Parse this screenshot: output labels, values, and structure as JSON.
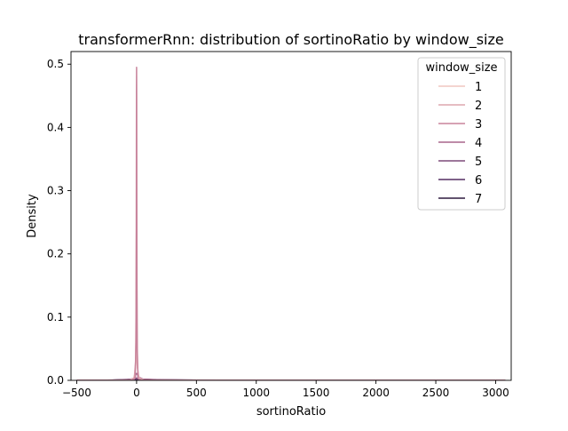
{
  "chart_data": {
    "type": "line",
    "title": "transformerRnn: distribution of sortinoRatio by window_size",
    "xlabel": "sortinoRatio",
    "ylabel": "Density",
    "xlim": [
      -548,
      3130
    ],
    "ylim": [
      0,
      0.52
    ],
    "xticks": [
      -500,
      0,
      500,
      1000,
      1500,
      2000,
      2500,
      3000
    ],
    "xtick_labels": [
      "−500",
      "0",
      "500",
      "1000",
      "1500",
      "2000",
      "2500",
      "3000"
    ],
    "yticks": [
      0.0,
      0.1,
      0.2,
      0.3,
      0.4,
      0.5
    ],
    "ytick_labels": [
      "0.0",
      "0.1",
      "0.2",
      "0.3",
      "0.4",
      "0.5"
    ],
    "grid": false,
    "legend": {
      "title": "window_size",
      "placement": "top-right"
    },
    "series": [
      {
        "name": "1",
        "color": "#f0c5c0",
        "x": [
          -500,
          -60,
          -25,
          -12,
          -6,
          -2,
          0,
          2,
          6,
          12,
          25,
          60,
          200,
          500,
          1000,
          2000,
          3080
        ],
        "y": [
          0,
          0.0003,
          0.003,
          0.012,
          0.028,
          0.044,
          0.048,
          0.042,
          0.024,
          0.01,
          0.003,
          0.0006,
          0.0002,
          0.0001,
          0,
          0,
          0
        ]
      },
      {
        "name": "2",
        "color": "#dda5ae",
        "x": [
          -500,
          -60,
          -20,
          -8,
          -4,
          -1.5,
          0,
          1.5,
          4,
          8,
          20,
          60,
          200,
          500,
          1500,
          3080
        ],
        "y": [
          0,
          0.0002,
          0.002,
          0.03,
          0.12,
          0.23,
          0.25,
          0.2,
          0.09,
          0.02,
          0.002,
          0.0005,
          0.0002,
          0,
          0,
          0
        ]
      },
      {
        "name": "3",
        "color": "#c8839b",
        "x": [
          -500,
          -40,
          -12,
          -5,
          -2.5,
          -1,
          0,
          1,
          2.5,
          5,
          12,
          40,
          200,
          500,
          1500,
          3080
        ],
        "y": [
          0,
          0.0002,
          0.004,
          0.06,
          0.25,
          0.46,
          0.495,
          0.44,
          0.22,
          0.05,
          0.003,
          0.0005,
          0.0002,
          0,
          0,
          0
        ]
      },
      {
        "name": "4",
        "color": "#a8658c",
        "x": [
          -500,
          -150,
          -50,
          -20,
          -8,
          0,
          8,
          20,
          50,
          150,
          400,
          800,
          1500,
          3080
        ],
        "y": [
          0,
          0.0002,
          0.001,
          0.004,
          0.009,
          0.011,
          0.009,
          0.005,
          0.002,
          0.0008,
          0.0003,
          0.0001,
          0,
          0
        ],
        "fill": "#a8658c"
      },
      {
        "name": "5",
        "color": "#7d4a7a",
        "x": [
          -500,
          -200,
          -60,
          -20,
          0,
          20,
          60,
          200,
          500,
          1000,
          1500,
          3080
        ],
        "y": [
          0,
          0.0004,
          0.0015,
          0.003,
          0.0035,
          0.003,
          0.0018,
          0.0008,
          0.0003,
          0.0001,
          0,
          0
        ]
      },
      {
        "name": "6",
        "color": "#552e62",
        "x": [
          -500,
          -300,
          -100,
          -30,
          0,
          30,
          100,
          300,
          700,
          1200,
          2000,
          3080
        ],
        "y": [
          0,
          0.0002,
          0.0008,
          0.0015,
          0.0018,
          0.0016,
          0.0011,
          0.0006,
          0.0003,
          0.0001,
          0,
          0
        ]
      },
      {
        "name": "7",
        "color": "#2d1a3f",
        "x": [
          -500,
          -200,
          -50,
          0,
          50,
          200,
          500,
          1000,
          2000,
          3080
        ],
        "y": [
          0.0001,
          0.0003,
          0.0008,
          0.001,
          0.0009,
          0.0006,
          0.0003,
          0.0002,
          0.0001,
          0
        ]
      }
    ]
  }
}
